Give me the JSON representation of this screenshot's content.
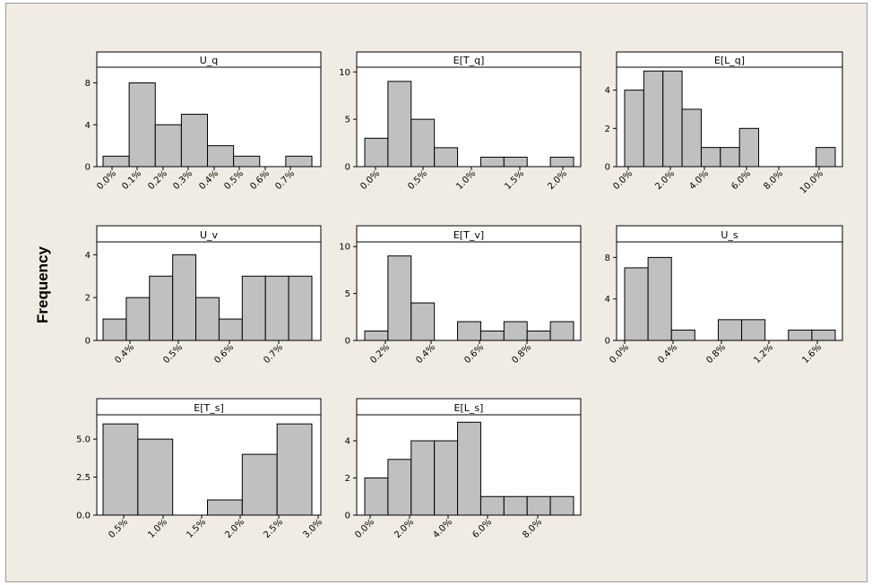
{
  "ylabel": "Frequency",
  "colors": {
    "bar_fill": "#c0c0c0",
    "bar_stroke": "#000000",
    "panel_bg": "#ffffff",
    "figure_bg": "#f0ece3"
  },
  "chart_data": [
    {
      "type": "bar",
      "title": "U_q",
      "values": [
        1,
        8,
        4,
        5,
        2,
        1,
        0,
        1
      ],
      "ylim": [
        0,
        9.5
      ],
      "yticks": [
        0,
        4,
        8
      ],
      "xticks": [
        "0.0%",
        "0.1%",
        "0.2%",
        "0.3%",
        "0.4%",
        "0.5%",
        "0.6%",
        "0.7%"
      ]
    },
    {
      "type": "bar",
      "title": "E[T_q]",
      "values": [
        3,
        9,
        5,
        2,
        0,
        1,
        1,
        0,
        1
      ],
      "ylim": [
        0,
        10.5
      ],
      "yticks": [
        0,
        5,
        10
      ],
      "xticks": [
        "0.0%",
        "0.5%",
        "1.0%",
        "1.5%",
        "2.0%"
      ]
    },
    {
      "type": "bar",
      "title": "E[L_q]",
      "values": [
        4,
        5,
        5,
        3,
        1,
        1,
        2,
        0,
        0,
        0,
        1
      ],
      "ylim": [
        0,
        5.2
      ],
      "yticks": [
        0,
        2,
        4
      ],
      "xticks": [
        "0.0%",
        "2.0%",
        "4.0%",
        "6.0%",
        "8.0%",
        "10.0%"
      ]
    },
    {
      "type": "bar",
      "title": "U_v",
      "values": [
        1,
        2,
        3,
        4,
        2,
        1,
        3,
        3,
        3
      ],
      "ylim": [
        0,
        4.6
      ],
      "yticks": [
        0,
        2,
        4
      ],
      "xticks": [
        "0.4%",
        "0.5%",
        "0.6%",
        "0.7%"
      ]
    },
    {
      "type": "bar",
      "title": "E[T_v]",
      "values": [
        1,
        9,
        4,
        0,
        2,
        1,
        2,
        1,
        2
      ],
      "ylim": [
        0,
        10.5
      ],
      "yticks": [
        0,
        5,
        10
      ],
      "xticks": [
        "0.2%",
        "0.4%",
        "0.6%",
        "0.8%"
      ]
    },
    {
      "type": "bar",
      "title": "U_s",
      "values": [
        7,
        8,
        1,
        0,
        2,
        2,
        0,
        1,
        1
      ],
      "ylim": [
        0,
        9.5
      ],
      "yticks": [
        0,
        4,
        8
      ],
      "xticks": [
        "0.0%",
        "0.4%",
        "0.8%",
        "1.2%",
        "1.6%"
      ]
    },
    {
      "type": "bar",
      "title": "E[T_s]",
      "values": [
        6,
        5,
        0,
        1,
        4,
        6
      ],
      "ylim": [
        0,
        6.6
      ],
      "yticks": [
        0.0,
        2.5,
        5.0
      ],
      "xticks": [
        "0.5%",
        "1.0%",
        "1.5%",
        "2.0%",
        "2.5%",
        "3.0%"
      ]
    },
    {
      "type": "bar",
      "title": "E[L_s]",
      "values": [
        2,
        3,
        4,
        4,
        5,
        1,
        1,
        1,
        1
      ],
      "ylim": [
        0,
        5.4
      ],
      "yticks": [
        0,
        2,
        4
      ],
      "xticks": [
        "0.0%",
        "2.0%",
        "4.0%",
        "6.0%",
        "8.0%"
      ]
    }
  ]
}
